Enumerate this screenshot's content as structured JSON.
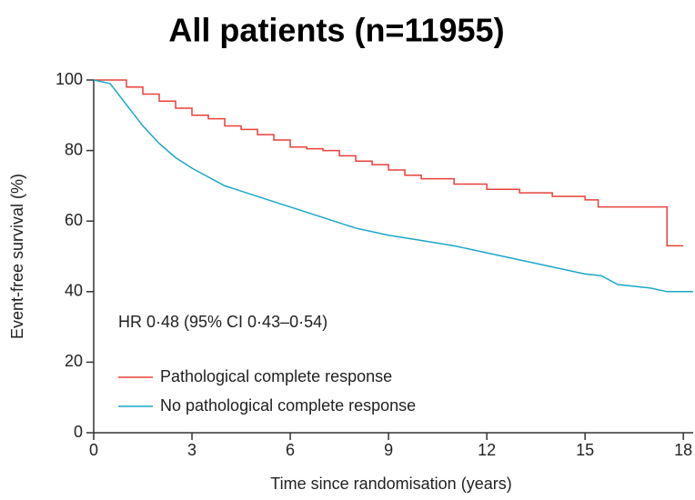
{
  "chart_data": {
    "type": "line",
    "title": "All patients (n=11955)",
    "xlabel": "Time since randomisation (years)",
    "ylabel": "Event-free survival (%)",
    "annotation": "HR 0·48 (95% CI 0·43–0·54)",
    "xlim": [
      0,
      18.3
    ],
    "ylim": [
      0,
      100
    ],
    "xticks": [
      0,
      3,
      6,
      9,
      12,
      15,
      18
    ],
    "yticks": [
      0,
      20,
      40,
      60,
      80,
      100
    ],
    "legend": "lower left",
    "series": [
      {
        "name": "Pathological complete response",
        "color": "#e8403a",
        "drawstyle": "steps-post",
        "x": [
          0,
          0.5,
          1,
          1.5,
          2,
          2.5,
          3,
          3.5,
          4,
          4.5,
          5,
          5.5,
          6,
          6.5,
          7,
          7.5,
          8,
          8.5,
          9,
          9.5,
          10,
          11,
          12,
          13,
          14,
          15,
          15.4,
          16,
          17,
          17.5,
          18
        ],
        "values": [
          100,
          100,
          98,
          96,
          94,
          92,
          90,
          89,
          87,
          86,
          84.5,
          83,
          81,
          80.5,
          80,
          78.5,
          77,
          76,
          74.5,
          73,
          72,
          70.5,
          69,
          68,
          67,
          66,
          64,
          64,
          64,
          53,
          53
        ]
      },
      {
        "name": "No pathological complete response",
        "color": "#1aa7c9",
        "drawstyle": "default",
        "x": [
          0,
          0.5,
          1,
          1.5,
          2,
          2.5,
          3,
          4,
          5,
          6,
          7,
          8,
          9,
          10,
          11,
          12,
          13,
          14,
          15,
          15.5,
          16,
          17,
          17.5,
          18.3
        ],
        "values": [
          100,
          99,
          93,
          87,
          82,
          78,
          75,
          70,
          67,
          64,
          61,
          58,
          56,
          54.5,
          53,
          51,
          49,
          47,
          45,
          44.5,
          42,
          41,
          40,
          40
        ]
      }
    ]
  }
}
